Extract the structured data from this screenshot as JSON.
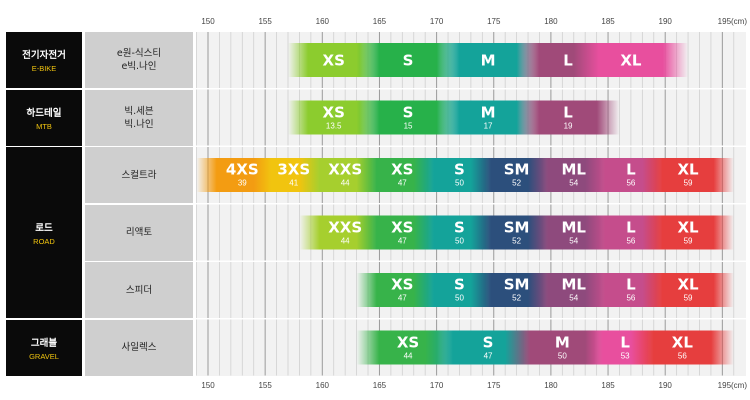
{
  "chart_data": {
    "type": "bar",
    "x_axis": {
      "ticks": [
        150,
        155,
        160,
        165,
        170,
        175,
        180,
        185,
        190,
        195
      ],
      "tick_labels": [
        "150",
        "155",
        "160",
        "165",
        "170",
        "175",
        "180",
        "185",
        "190",
        "195(cm)"
      ],
      "range": [
        150,
        195
      ]
    },
    "categories": [
      {
        "name_ko": "전기자전거",
        "name_en": "E-BIKE",
        "rows": [
          0
        ]
      },
      {
        "name_ko": "하드테일",
        "name_en": "MTB",
        "rows": [
          1
        ]
      },
      {
        "name_ko": "로드",
        "name_en": "ROAD",
        "rows": [
          2,
          3,
          4
        ]
      },
      {
        "name_ko": "그래블",
        "name_en": "GRAVEL",
        "rows": [
          5
        ]
      }
    ],
    "rows": [
      {
        "model": [
          "e원-식스티",
          "e빅.나인"
        ],
        "sizes": [
          {
            "name": "XS",
            "frame": "",
            "start": 157,
            "end": 165,
            "color": "#8ccc2e"
          },
          {
            "name": "S",
            "frame": "",
            "start": 163,
            "end": 172,
            "color": "#27b14a"
          },
          {
            "name": "M",
            "frame": "",
            "start": 170,
            "end": 179,
            "color": "#14a39a"
          },
          {
            "name": "L",
            "frame": "",
            "start": 177,
            "end": 186,
            "color": "#a04a79"
          },
          {
            "name": "XL",
            "frame": "",
            "start": 182,
            "end": 192,
            "color": "#e84f9e"
          }
        ]
      },
      {
        "model": [
          "빅.세븐",
          "빅.나인"
        ],
        "sizes": [
          {
            "name": "XS",
            "frame": "13.5",
            "start": 157,
            "end": 165,
            "color": "#8ccc2e"
          },
          {
            "name": "S",
            "frame": "15",
            "start": 163,
            "end": 172,
            "color": "#27b14a"
          },
          {
            "name": "M",
            "frame": "17",
            "start": 170,
            "end": 179,
            "color": "#14a39a"
          },
          {
            "name": "L",
            "frame": "19",
            "start": 177,
            "end": 186,
            "color": "#a04a79"
          }
        ]
      },
      {
        "model": [
          "스컬트라"
        ],
        "sizes": [
          {
            "name": "4XS",
            "frame": "39",
            "start": 149,
            "end": 157,
            "color": "#f39c12"
          },
          {
            "name": "3XS",
            "frame": "41",
            "start": 154,
            "end": 161,
            "color": "#f1c40f"
          },
          {
            "name": "XXS",
            "frame": "44",
            "start": 158,
            "end": 166,
            "color": "#a6cf2e"
          },
          {
            "name": "XS",
            "frame": "47",
            "start": 163,
            "end": 171,
            "color": "#37b34a"
          },
          {
            "name": "S",
            "frame": "50",
            "start": 168,
            "end": 176,
            "color": "#14a39a"
          },
          {
            "name": "SM",
            "frame": "52",
            "start": 173,
            "end": 181,
            "color": "#2c4f7c"
          },
          {
            "name": "ML",
            "frame": "54",
            "start": 178,
            "end": 186,
            "color": "#8e4a7d"
          },
          {
            "name": "L",
            "frame": "56",
            "start": 183,
            "end": 191,
            "color": "#c54d8c"
          },
          {
            "name": "XL",
            "frame": "59",
            "start": 188,
            "end": 196,
            "color": "#e63e3e"
          }
        ]
      },
      {
        "model": [
          "리액토"
        ],
        "sizes": [
          {
            "name": "XXS",
            "frame": "44",
            "start": 158,
            "end": 166,
            "color": "#a6cf2e"
          },
          {
            "name": "XS",
            "frame": "47",
            "start": 163,
            "end": 171,
            "color": "#37b34a"
          },
          {
            "name": "S",
            "frame": "50",
            "start": 168,
            "end": 176,
            "color": "#14a39a"
          },
          {
            "name": "SM",
            "frame": "52",
            "start": 173,
            "end": 181,
            "color": "#2c4f7c"
          },
          {
            "name": "ML",
            "frame": "54",
            "start": 178,
            "end": 186,
            "color": "#8e4a7d"
          },
          {
            "name": "L",
            "frame": "56",
            "start": 183,
            "end": 191,
            "color": "#c54d8c"
          },
          {
            "name": "XL",
            "frame": "59",
            "start": 188,
            "end": 196,
            "color": "#e63e3e"
          }
        ]
      },
      {
        "model": [
          "스피더"
        ],
        "sizes": [
          {
            "name": "XS",
            "frame": "47",
            "start": 163,
            "end": 171,
            "color": "#37b34a"
          },
          {
            "name": "S",
            "frame": "50",
            "start": 168,
            "end": 176,
            "color": "#14a39a"
          },
          {
            "name": "SM",
            "frame": "52",
            "start": 173,
            "end": 181,
            "color": "#2c4f7c"
          },
          {
            "name": "ML",
            "frame": "54",
            "start": 178,
            "end": 186,
            "color": "#8e4a7d"
          },
          {
            "name": "L",
            "frame": "56",
            "start": 183,
            "end": 191,
            "color": "#c54d8c"
          },
          {
            "name": "XL",
            "frame": "59",
            "start": 188,
            "end": 196,
            "color": "#e63e3e"
          }
        ]
      },
      {
        "model": [
          "사일렉스"
        ],
        "sizes": [
          {
            "name": "XS",
            "frame": "44",
            "start": 163,
            "end": 172,
            "color": "#37b34a"
          },
          {
            "name": "S",
            "frame": "47",
            "start": 169,
            "end": 180,
            "color": "#14a39a"
          },
          {
            "name": "M",
            "frame": "50",
            "start": 176,
            "end": 186,
            "color": "#a04a79"
          },
          {
            "name": "L",
            "frame": "53",
            "start": 183,
            "end": 190,
            "color": "#e84f9e"
          },
          {
            "name": "XL",
            "frame": "56",
            "start": 187,
            "end": 196,
            "color": "#e63e3e"
          }
        ]
      }
    ]
  }
}
